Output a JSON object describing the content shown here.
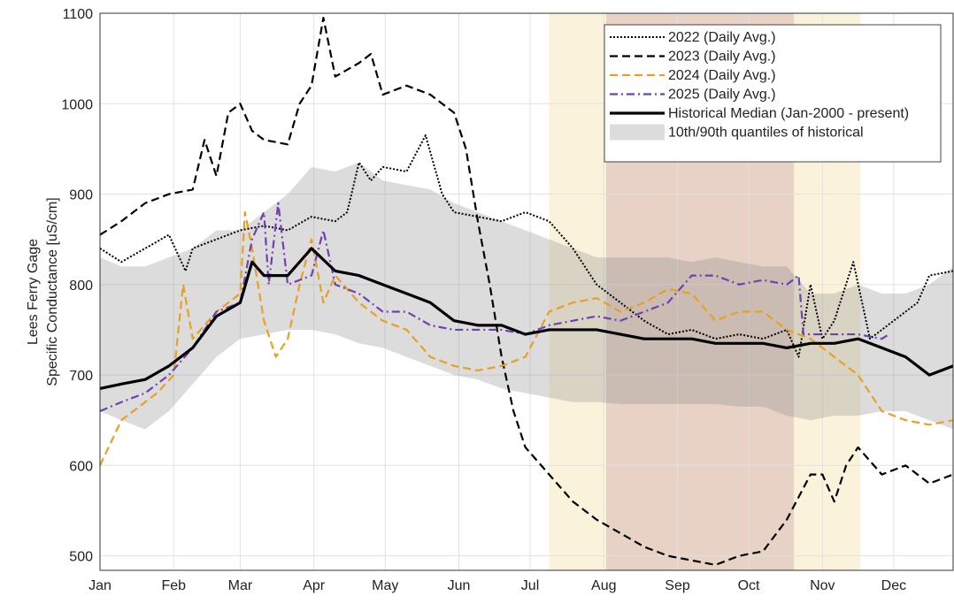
{
  "chart_data": {
    "type": "line",
    "ylabel": [
      "Lees Ferry Gage",
      "Specific Conductance [uS/cm]"
    ],
    "xlim": [
      1,
      360
    ],
    "xticks": [
      {
        "value": 1,
        "label": "Jan"
      },
      {
        "value": 32,
        "label": "Feb"
      },
      {
        "value": 60,
        "label": "Mar"
      },
      {
        "value": 91,
        "label": "Apr"
      },
      {
        "value": 121,
        "label": "May"
      },
      {
        "value": 152,
        "label": "Jun"
      },
      {
        "value": 182,
        "label": "Jul"
      },
      {
        "value": 213,
        "label": "Aug"
      },
      {
        "value": 244,
        "label": "Sep"
      },
      {
        "value": 274,
        "label": "Oct"
      },
      {
        "value": 305,
        "label": "Nov"
      },
      {
        "value": 335,
        "label": "Dec"
      }
    ],
    "ylim": [
      484,
      1100
    ],
    "yticks": [
      500,
      600,
      700,
      800,
      900,
      1000,
      1100
    ],
    "grid": true,
    "legend": "upper right",
    "spans": [
      {
        "x": [
          190,
          321
        ],
        "color": "rgba(245,222,160,0.38)"
      },
      {
        "x": [
          214,
          293
        ],
        "color": "rgba(180,130,140,0.28)"
      }
    ],
    "series": [
      {
        "name": "2022 (Daily Avg.)",
        "color": "#000000",
        "linestyle": "dotted",
        "x": [
          1,
          10,
          20,
          30,
          37,
          40,
          50,
          60,
          70,
          80,
          90,
          100,
          105,
          110,
          115,
          120,
          130,
          138,
          145,
          150,
          160,
          170,
          180,
          190,
          200,
          210,
          220,
          230,
          240,
          250,
          260,
          270,
          280,
          290,
          295,
          300,
          305,
          310,
          318,
          325,
          330,
          335,
          345,
          350,
          360
        ],
        "values": [
          840,
          825,
          840,
          855,
          815,
          840,
          850,
          860,
          865,
          860,
          875,
          870,
          880,
          935,
          915,
          930,
          925,
          965,
          900,
          880,
          875,
          870,
          880,
          870,
          840,
          800,
          780,
          760,
          745,
          750,
          740,
          745,
          740,
          750,
          720,
          800,
          740,
          760,
          825,
          740,
          750,
          760,
          780,
          810,
          815
        ]
      },
      {
        "name": "2023 (Daily Avg.)",
        "color": "#000000",
        "linestyle": "dashed",
        "x": [
          1,
          10,
          20,
          30,
          40,
          45,
          50,
          55,
          60,
          65,
          70,
          80,
          85,
          90,
          95,
          100,
          110,
          115,
          120,
          130,
          140,
          150,
          155,
          160,
          165,
          170,
          175,
          180,
          190,
          200,
          210,
          220,
          230,
          240,
          250,
          260,
          270,
          280,
          290,
          300,
          305,
          310,
          315,
          320,
          330,
          340,
          350,
          360
        ],
        "values": [
          855,
          870,
          890,
          900,
          905,
          960,
          920,
          990,
          1000,
          970,
          960,
          955,
          1000,
          1020,
          1095,
          1030,
          1045,
          1055,
          1010,
          1020,
          1010,
          990,
          950,
          870,
          800,
          720,
          660,
          620,
          590,
          560,
          540,
          525,
          510,
          500,
          495,
          490,
          500,
          505,
          540,
          590,
          590,
          560,
          600,
          620,
          590,
          600,
          580,
          590
        ]
      },
      {
        "name": "2024 (Daily Avg.)",
        "color": "#e8a020",
        "linestyle": "dashed",
        "x": [
          1,
          10,
          20,
          25,
          32,
          36,
          40,
          50,
          60,
          62,
          65,
          70,
          75,
          80,
          85,
          90,
          95,
          100,
          110,
          120,
          130,
          140,
          150,
          160,
          170,
          180,
          190,
          200,
          210,
          220,
          230,
          240,
          250,
          260,
          270,
          280,
          290,
          300,
          310,
          320,
          330,
          340,
          350,
          360
        ],
        "values": [
          600,
          650,
          670,
          680,
          700,
          800,
          740,
          770,
          790,
          880,
          840,
          760,
          720,
          740,
          800,
          850,
          780,
          810,
          780,
          760,
          750,
          720,
          710,
          705,
          710,
          720,
          770,
          780,
          785,
          770,
          780,
          795,
          790,
          760,
          770,
          770,
          750,
          740,
          720,
          700,
          660,
          650,
          645,
          650
        ]
      },
      {
        "name": "2025 (Daily Avg.)",
        "color": "#7040b0",
        "linestyle": "dashdot",
        "x": [
          1,
          10,
          20,
          30,
          40,
          50,
          60,
          65,
          70,
          72,
          76,
          80,
          90,
          95,
          100,
          110,
          120,
          130,
          140,
          150,
          160,
          170,
          180,
          190,
          200,
          210,
          220,
          230,
          240,
          250,
          260,
          270,
          280,
          290,
          295,
          297,
          300,
          310,
          320,
          330,
          333
        ],
        "values": [
          660,
          670,
          680,
          700,
          730,
          770,
          780,
          850,
          880,
          800,
          890,
          800,
          810,
          860,
          800,
          790,
          770,
          770,
          755,
          750,
          750,
          750,
          745,
          755,
          760,
          765,
          760,
          770,
          780,
          810,
          810,
          800,
          805,
          800,
          810,
          745,
          745,
          745,
          745,
          740,
          745
        ]
      },
      {
        "name": "Historical Median (Jan-2000 - present)",
        "color": "#000000",
        "linestyle": "solid",
        "x": [
          1,
          10,
          20,
          30,
          40,
          50,
          60,
          65,
          70,
          80,
          85,
          90,
          100,
          110,
          120,
          130,
          140,
          150,
          160,
          170,
          180,
          190,
          200,
          210,
          220,
          230,
          240,
          250,
          260,
          270,
          280,
          290,
          300,
          310,
          320,
          330,
          340,
          350,
          360
        ],
        "values": [
          685,
          690,
          695,
          710,
          730,
          765,
          780,
          825,
          810,
          810,
          825,
          840,
          815,
          810,
          800,
          790,
          780,
          760,
          755,
          755,
          745,
          750,
          750,
          750,
          745,
          740,
          740,
          740,
          735,
          735,
          735,
          730,
          735,
          735,
          740,
          730,
          720,
          700,
          710
        ]
      }
    ],
    "band": {
      "name": "10th/90th quantiles of historical",
      "color": "rgba(140,140,140,0.3)",
      "x": [
        1,
        10,
        20,
        30,
        40,
        50,
        60,
        70,
        80,
        90,
        100,
        110,
        120,
        130,
        140,
        150,
        160,
        170,
        180,
        190,
        200,
        210,
        220,
        230,
        240,
        250,
        260,
        270,
        280,
        290,
        300,
        310,
        320,
        330,
        340,
        350,
        360
      ],
      "upper": [
        830,
        820,
        820,
        830,
        840,
        860,
        860,
        880,
        900,
        930,
        925,
        935,
        915,
        910,
        905,
        890,
        880,
        870,
        860,
        850,
        840,
        830,
        830,
        830,
        830,
        825,
        830,
        825,
        820,
        820,
        790,
        790,
        800,
        790,
        790,
        800,
        820
      ],
      "lower": [
        660,
        650,
        640,
        660,
        690,
        720,
        740,
        745,
        750,
        750,
        745,
        735,
        730,
        720,
        710,
        700,
        695,
        685,
        680,
        675,
        670,
        670,
        668,
        668,
        668,
        668,
        668,
        665,
        665,
        655,
        650,
        655,
        655,
        660,
        660,
        650,
        640
      ]
    }
  }
}
